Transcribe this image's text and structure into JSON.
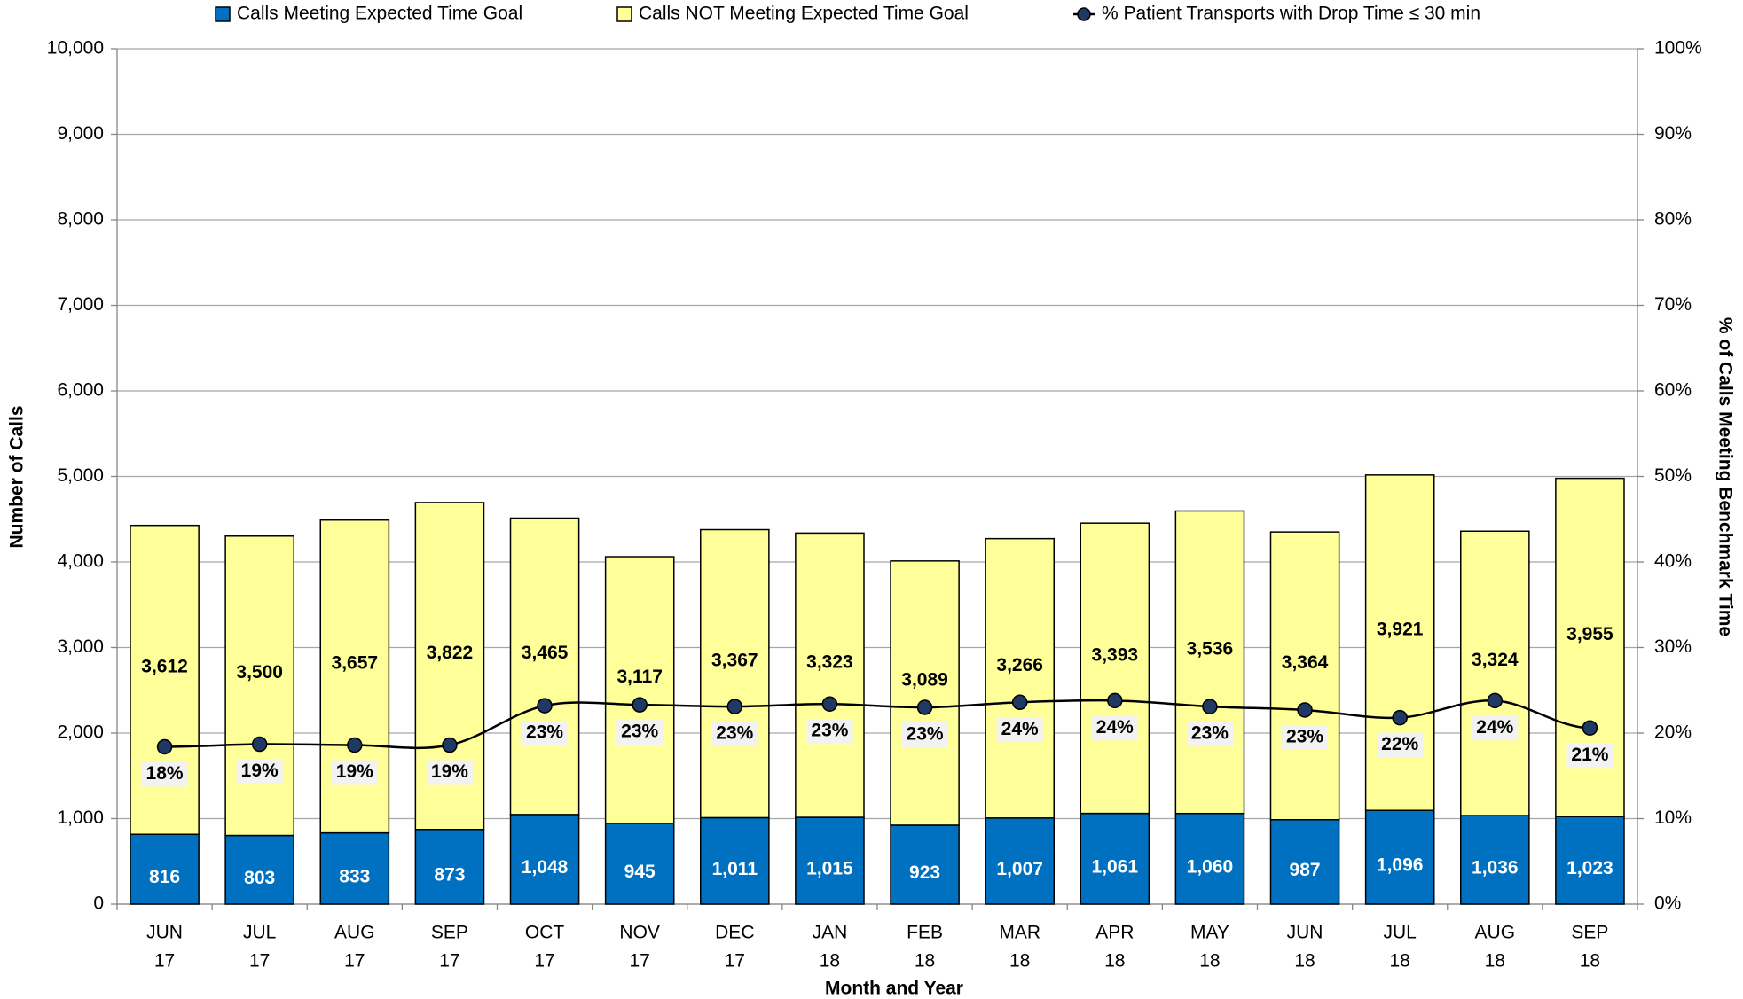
{
  "chart_data": {
    "type": "stacked-bar-line",
    "x_label": "Month and Year",
    "y_label": "Number of Calls",
    "y2_label": "% of Calls Meeting Benchmark Time",
    "categories": [
      [
        "JUN",
        "17"
      ],
      [
        "JUL",
        "17"
      ],
      [
        "AUG",
        "17"
      ],
      [
        "SEP",
        "17"
      ],
      [
        "OCT",
        "17"
      ],
      [
        "NOV",
        "17"
      ],
      [
        "DEC",
        "17"
      ],
      [
        "JAN",
        "18"
      ],
      [
        "FEB",
        "18"
      ],
      [
        "MAR",
        "18"
      ],
      [
        "APR",
        "18"
      ],
      [
        "MAY",
        "18"
      ],
      [
        "JUN",
        "18"
      ],
      [
        "JUL",
        "18"
      ],
      [
        "AUG",
        "18"
      ],
      [
        "SEP",
        "18"
      ]
    ],
    "series": [
      {
        "name": "Calls Meeting Expected Time Goal",
        "type": "bar",
        "color": "#0070c0",
        "values": [
          816,
          803,
          833,
          873,
          1048,
          945,
          1011,
          1015,
          923,
          1007,
          1061,
          1060,
          987,
          1096,
          1036,
          1023
        ],
        "value_labels": [
          "816",
          "803",
          "833",
          "873",
          "1,048",
          "945",
          "1,011",
          "1,015",
          "923",
          "1,007",
          "1,061",
          "1,060",
          "987",
          "1,096",
          "1,036",
          "1,023"
        ]
      },
      {
        "name": "Calls NOT Meeting Expected Time Goal",
        "type": "bar",
        "color": "#ffff99",
        "values": [
          3612,
          3500,
          3657,
          3822,
          3465,
          3117,
          3367,
          3323,
          3089,
          3266,
          3393,
          3536,
          3364,
          3921,
          3324,
          3955
        ],
        "value_labels": [
          "3,612",
          "3,500",
          "3,657",
          "3,822",
          "3,465",
          "3,117",
          "3,367",
          "3,323",
          "3,089",
          "3,266",
          "3,393",
          "3,536",
          "3,364",
          "3,921",
          "3,324",
          "3,955"
        ]
      },
      {
        "name": "% Patient Transports with Drop Time ≤ 30 min",
        "type": "line",
        "axis": "y2",
        "color": "#1f3864",
        "values": [
          18.4,
          18.7,
          18.6,
          18.6,
          23.2,
          23.3,
          23.1,
          23.4,
          23.0,
          23.6,
          23.8,
          23.1,
          22.7,
          21.8,
          23.8,
          20.6
        ],
        "value_labels": [
          "18%",
          "19%",
          "19%",
          "19%",
          "23%",
          "23%",
          "23%",
          "23%",
          "23%",
          "24%",
          "24%",
          "23%",
          "23%",
          "22%",
          "24%",
          "21%"
        ]
      }
    ],
    "ylim": [
      0,
      10000
    ],
    "yticks": [
      0,
      {
        "value": 1000,
        "label": "1,000"
      },
      {
        "value": 2000,
        "label": "2,000"
      },
      {
        "value": 3000,
        "label": "3,000"
      },
      {
        "value": 4000,
        "label": "4,000"
      },
      {
        "value": 5000,
        "label": "5,000"
      },
      {
        "value": 6000,
        "label": "6,000"
      },
      {
        "value": 7000,
        "label": "7,000"
      },
      {
        "value": 8000,
        "label": "8,000"
      },
      {
        "value": 9000,
        "label": "9,000"
      },
      {
        "value": 10000,
        "label": "10,000"
      }
    ],
    "y2lim": [
      0,
      100
    ],
    "y2ticks": [
      {
        "value": 0,
        "label": "0%"
      },
      {
        "value": 10,
        "label": "10%"
      },
      {
        "value": 20,
        "label": "20%"
      },
      {
        "value": 30,
        "label": "30%"
      },
      {
        "value": 40,
        "label": "40%"
      },
      {
        "value": 50,
        "label": "50%"
      },
      {
        "value": 60,
        "label": "60%"
      },
      {
        "value": 70,
        "label": "70%"
      },
      {
        "value": 80,
        "label": "80%"
      },
      {
        "value": 90,
        "label": "90%"
      },
      {
        "value": 100,
        "label": "100%"
      }
    ],
    "grid": true,
    "legend": "top"
  }
}
